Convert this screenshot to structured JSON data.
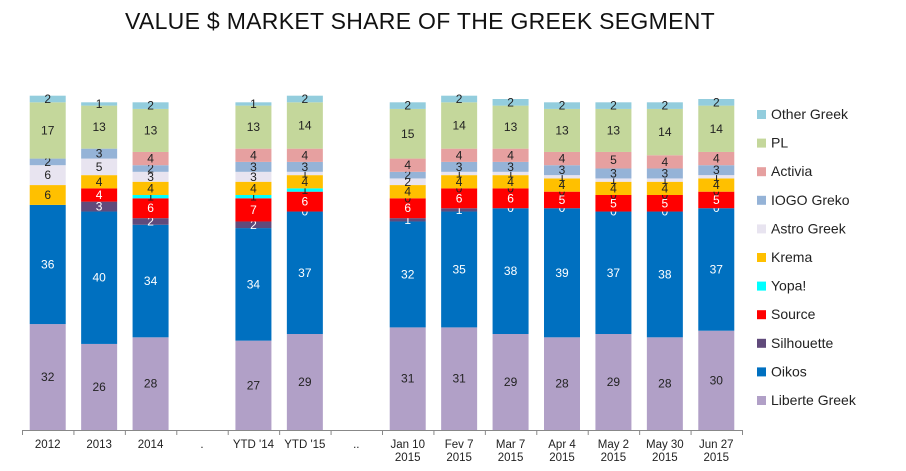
{
  "chart_data": {
    "type": "bar",
    "stacked": true,
    "title": "VALUE $ MARKET SHARE OF THE GREEK SEGMENT",
    "xlabel": "",
    "ylabel": "",
    "ylim": [
      0,
      100
    ],
    "legend_position": "right",
    "categories": [
      [
        "2012"
      ],
      [
        "2013"
      ],
      [
        "2014"
      ],
      [
        "."
      ],
      [
        "YTD '14"
      ],
      [
        "YTD '15"
      ],
      [
        ".."
      ],
      [
        "Jan 10",
        "2015"
      ],
      [
        "Fev 7",
        "2015"
      ],
      [
        "Mar 7",
        "2015"
      ],
      [
        "Apr 4",
        "2015"
      ],
      [
        "May 2",
        "2015"
      ],
      [
        "May 30",
        "2015"
      ],
      [
        "Jun 27",
        "2015"
      ]
    ],
    "series": [
      {
        "name": "Liberte Greek",
        "color": "#b1a0c7",
        "values": [
          32,
          26,
          28,
          null,
          27,
          29,
          null,
          31,
          31,
          29,
          28,
          29,
          28,
          30
        ]
      },
      {
        "name": "Oikos",
        "color": "#0070c0",
        "values": [
          36,
          40,
          34,
          null,
          34,
          37,
          null,
          32,
          35,
          38,
          39,
          37,
          38,
          37
        ]
      },
      {
        "name": "Silhouette",
        "color": "#604a7b",
        "values": [
          0,
          3,
          2,
          null,
          2,
          0,
          null,
          1,
          1,
          0,
          0,
          0,
          0,
          0
        ]
      },
      {
        "name": "Source",
        "color": "#ff0000",
        "values": [
          0,
          4,
          6,
          null,
          7,
          6,
          null,
          6,
          6,
          6,
          5,
          5,
          5,
          5
        ]
      },
      {
        "name": "Yopa!",
        "color": "#00ffff",
        "values": [
          0,
          0,
          1,
          null,
          1,
          1,
          null,
          0,
          0,
          0,
          0,
          0,
          0,
          0
        ]
      },
      {
        "name": "Krema",
        "color": "#ffc000",
        "values": [
          6,
          4,
          4,
          null,
          4,
          4,
          null,
          4,
          4,
          4,
          4,
          4,
          4,
          4
        ]
      },
      {
        "name": "Astro Greek",
        "color": "#e8e4f0",
        "values": [
          6,
          5,
          3,
          null,
          3,
          1,
          null,
          2,
          1,
          1,
          1,
          1,
          1,
          1
        ]
      },
      {
        "name": "IOGO Greko",
        "color": "#95b3d7",
        "values": [
          2,
          3,
          2,
          null,
          3,
          3,
          null,
          2,
          3,
          3,
          3,
          3,
          3,
          3
        ]
      },
      {
        "name": "Activia",
        "color": "#e6a0a0",
        "values": [
          0,
          0,
          4,
          null,
          4,
          4,
          null,
          4,
          4,
          4,
          4,
          5,
          4,
          4
        ]
      },
      {
        "name": "PL",
        "color": "#c4d79b",
        "values": [
          17,
          13,
          13,
          null,
          13,
          14,
          null,
          15,
          14,
          13,
          13,
          13,
          14,
          14
        ]
      },
      {
        "name": "Other Greek",
        "color": "#93cddd",
        "values": [
          2,
          1,
          2,
          null,
          1,
          2,
          null,
          2,
          2,
          2,
          2,
          2,
          2,
          2
        ]
      }
    ],
    "labels": [
      [
        "32",
        "36",
        "",
        "",
        "",
        "6",
        "6",
        "2",
        "",
        "17",
        "2"
      ],
      [
        "26",
        "40",
        "3",
        "4",
        "",
        "4",
        "5",
        "3",
        "",
        "13",
        "1"
      ],
      [
        "28",
        "34",
        "2",
        "6",
        "1",
        "4",
        "3",
        "2",
        "4",
        "13",
        "2"
      ],
      [
        "",
        "",
        "",
        "",
        "",
        "",
        "",
        "",
        "",
        "",
        ""
      ],
      [
        "27",
        "34",
        "2",
        "7",
        "1",
        "4",
        "3",
        "3",
        "4",
        "13",
        "1"
      ],
      [
        "29",
        "37",
        "0",
        "6",
        "1",
        "4",
        "1",
        "3",
        "4",
        "14",
        "2"
      ],
      [
        "",
        "",
        "",
        "",
        "",
        "",
        "",
        "",
        "",
        "",
        ""
      ],
      [
        "31",
        "32",
        "1",
        "6",
        "0",
        "4",
        "2",
        "2",
        "4",
        "15",
        "2"
      ],
      [
        "31",
        "35",
        "1",
        "6",
        "0",
        "4",
        "1",
        "3",
        "4",
        "14",
        "2"
      ],
      [
        "29",
        "38",
        "0",
        "6",
        "0",
        "4",
        "1",
        "3",
        "4",
        "13",
        "2"
      ],
      [
        "28",
        "39",
        "0",
        "5",
        "0",
        "4",
        "1",
        "3",
        "4",
        "13",
        "2"
      ],
      [
        "29",
        "37",
        "0",
        "5",
        "0",
        "4",
        "1",
        "3",
        "5",
        "13",
        "2"
      ],
      [
        "28",
        "38",
        "0",
        "5",
        "0",
        "4",
        "1",
        "3",
        "4",
        "14",
        "2"
      ],
      [
        "30",
        "37",
        "0",
        "5",
        "0",
        "4",
        "1",
        "3",
        "4",
        "14",
        "2"
      ]
    ]
  }
}
